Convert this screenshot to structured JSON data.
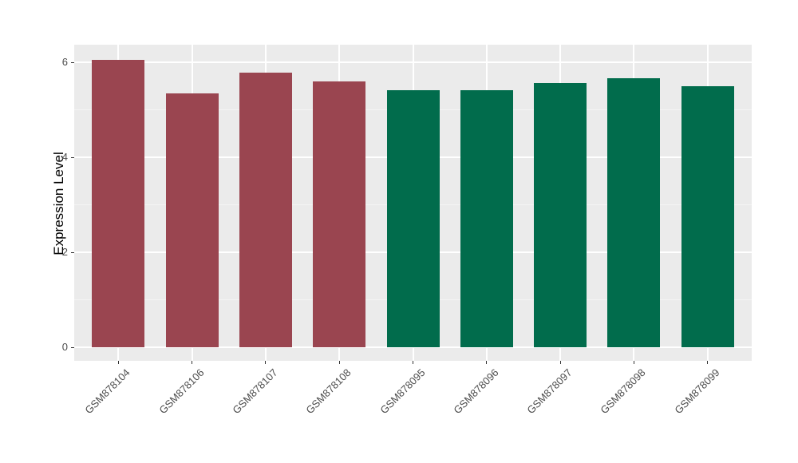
{
  "chart_data": {
    "type": "bar",
    "title": "",
    "xlabel": "",
    "ylabel": "Expression Level",
    "categories": [
      "GSM878104",
      "GSM878106",
      "GSM878107",
      "GSM878108",
      "GSM878095",
      "GSM878096",
      "GSM878097",
      "GSM878098",
      "GSM878099"
    ],
    "values": [
      6.05,
      5.35,
      5.78,
      5.6,
      5.41,
      5.41,
      5.57,
      5.67,
      5.49
    ],
    "bar_colors": [
      "#9A4550",
      "#9A4550",
      "#9A4550",
      "#9A4550",
      "#016C4C",
      "#016C4C",
      "#016C4C",
      "#016C4C",
      "#016C4C"
    ],
    "yticks": [
      0,
      2,
      4,
      6
    ],
    "yticks_minor": [
      1,
      3,
      5
    ],
    "ylim": [
      -0.3,
      6.35
    ],
    "grid": "on",
    "legend": "none",
    "colors": {
      "panel_background": "#EBEBEB",
      "grid_major": "#FFFFFF",
      "grid_minor": "#F4F4F4",
      "tick_mark": "#333333",
      "axis_text": "#4D4D4D",
      "axis_title": "#000000",
      "figure_background": "#FFFFFF",
      "red_group": "#9A4550",
      "green_group": "#016C4C"
    }
  }
}
